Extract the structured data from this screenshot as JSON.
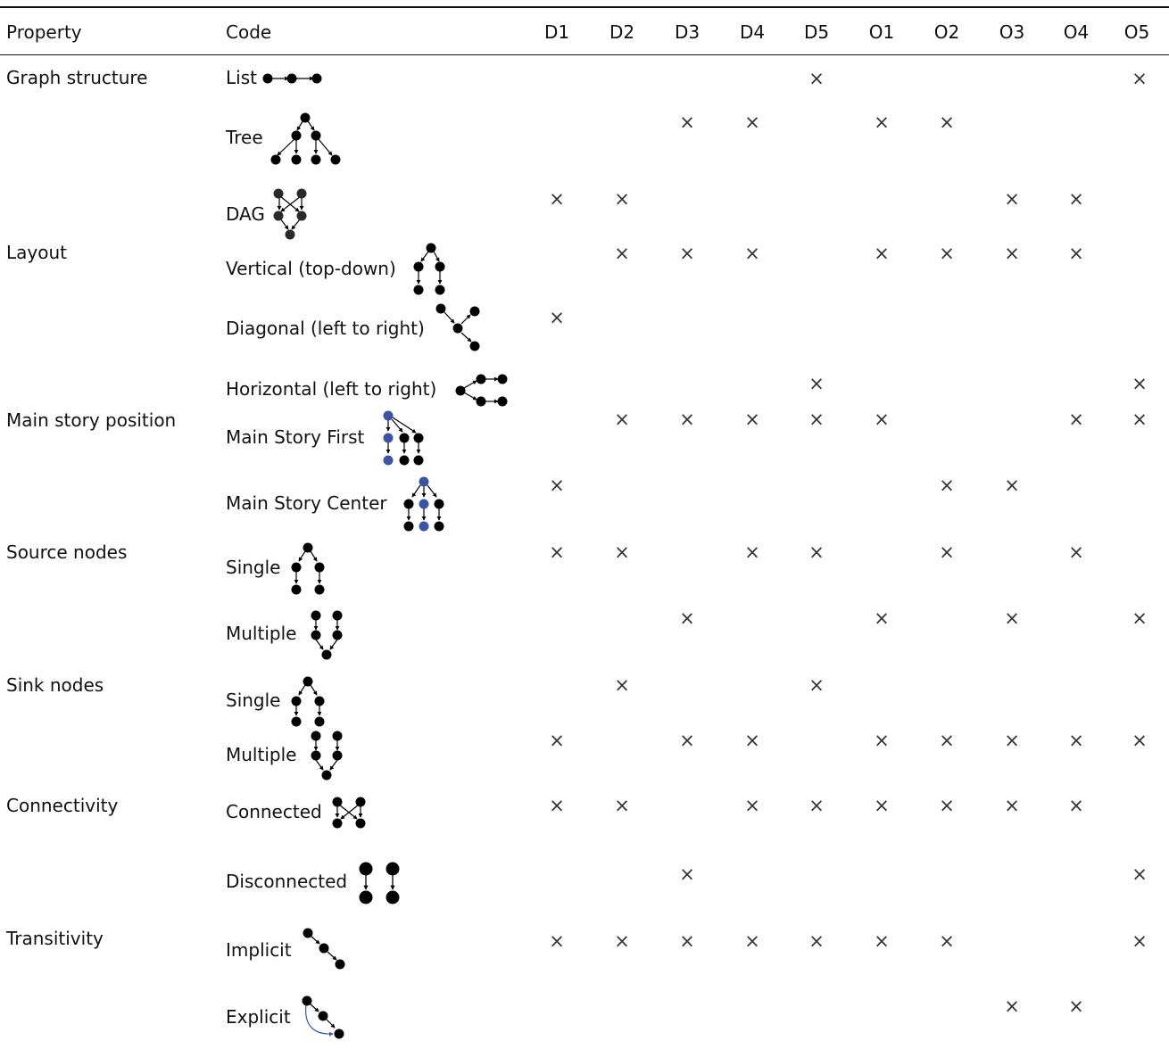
{
  "header": {
    "property": "Property",
    "code": "Code",
    "datasets": [
      "D1",
      "D2",
      "D3",
      "D4",
      "D5",
      "O1",
      "O2",
      "O3",
      "O4",
      "O5"
    ]
  },
  "mark_symbol": "×",
  "colors": {
    "main_story_node": "#3b54a8",
    "node": "#000000",
    "text": "#111111"
  },
  "groups": [
    {
      "property": "Graph structure"
    },
    {
      "property": "Layout"
    },
    {
      "property": "Main story position"
    },
    {
      "property": "Source nodes"
    },
    {
      "property": "Sink nodes"
    },
    {
      "property": "Connectivity"
    },
    {
      "property": "Transitivity"
    }
  ],
  "rows": [
    {
      "code": "List",
      "icon": "list-graph-icon",
      "marks": [
        0,
        0,
        0,
        0,
        1,
        0,
        0,
        0,
        0,
        1
      ]
    },
    {
      "code": "Tree",
      "icon": "tree-graph-icon",
      "marks": [
        0,
        0,
        1,
        1,
        0,
        1,
        1,
        0,
        0,
        0
      ]
    },
    {
      "code": "DAG",
      "icon": "dag-graph-icon",
      "marks": [
        1,
        1,
        0,
        0,
        0,
        0,
        0,
        1,
        1,
        0
      ]
    },
    {
      "code": "Vertical (top-down)",
      "icon": "vertical-layout-icon",
      "marks": [
        0,
        1,
        1,
        1,
        0,
        1,
        1,
        1,
        1,
        0
      ]
    },
    {
      "code": "Diagonal (left to right)",
      "icon": "diagonal-layout-icon",
      "marks": [
        1,
        0,
        0,
        0,
        0,
        0,
        0,
        0,
        0,
        0
      ]
    },
    {
      "code": "Horizontal (left to right)",
      "icon": "horizontal-layout-icon",
      "marks": [
        0,
        0,
        0,
        0,
        1,
        0,
        0,
        0,
        0,
        1
      ]
    },
    {
      "code": "Main Story First",
      "icon": "main-story-first-icon",
      "marks": [
        0,
        1,
        1,
        1,
        1,
        1,
        0,
        0,
        1,
        1
      ]
    },
    {
      "code": "Main Story Center",
      "icon": "main-story-center-icon",
      "marks": [
        1,
        0,
        0,
        0,
        0,
        0,
        1,
        1,
        0,
        0
      ]
    },
    {
      "code": "Single",
      "icon": "single-source-icon",
      "marks": [
        1,
        1,
        0,
        1,
        1,
        0,
        1,
        0,
        1,
        0
      ]
    },
    {
      "code": "Multiple",
      "icon": "multiple-source-icon",
      "marks": [
        0,
        0,
        1,
        0,
        0,
        1,
        0,
        1,
        0,
        1
      ]
    },
    {
      "code": "Single",
      "icon": "single-sink-icon",
      "marks": [
        0,
        1,
        0,
        0,
        1,
        0,
        0,
        0,
        0,
        0
      ]
    },
    {
      "code": "Multiple",
      "icon": "multiple-sink-icon",
      "marks": [
        1,
        0,
        1,
        1,
        0,
        1,
        1,
        1,
        1,
        1
      ]
    },
    {
      "code": "Connected",
      "icon": "connected-graph-icon",
      "marks": [
        1,
        1,
        0,
        1,
        1,
        1,
        1,
        1,
        1,
        0
      ]
    },
    {
      "code": "Disconnected",
      "icon": "disconnected-graph-icon",
      "marks": [
        0,
        0,
        1,
        0,
        0,
        0,
        0,
        0,
        0,
        1
      ]
    },
    {
      "code": "Implicit",
      "icon": "implicit-transitivity-icon",
      "marks": [
        1,
        1,
        1,
        1,
        1,
        1,
        1,
        0,
        0,
        1
      ]
    },
    {
      "code": "Explicit",
      "icon": "explicit-transitivity-icon",
      "marks": [
        0,
        0,
        0,
        0,
        0,
        0,
        0,
        1,
        1,
        0
      ]
    }
  ]
}
